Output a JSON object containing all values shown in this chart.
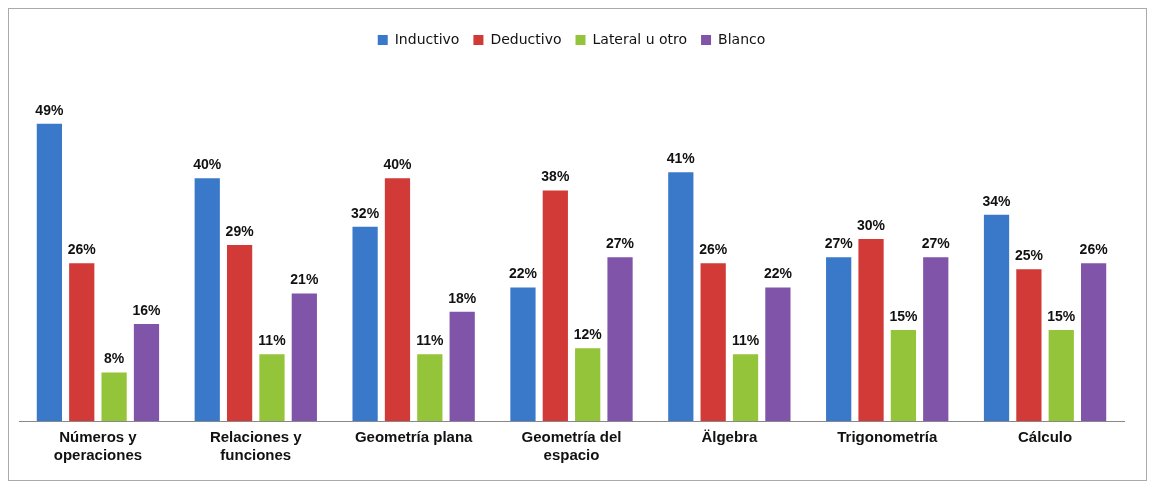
{
  "chart_data": {
    "type": "bar",
    "categories": [
      "Números y operaciones",
      "Relaciones y funciones",
      "Geometría plana",
      "Geometría del espacio",
      "Älgebra",
      "Trigonometría",
      "Cálculo"
    ],
    "series": [
      {
        "name": "Inductivo",
        "color": "#3a78c9",
        "values": [
          49,
          40,
          32,
          22,
          41,
          27,
          34
        ],
        "value_labels": [
          "49%",
          "40%",
          "32%",
          "22%",
          "41%",
          "27%",
          "34%"
        ]
      },
      {
        "name": "Deductivo",
        "color": "#d13a36",
        "values": [
          26,
          29,
          40,
          38,
          26,
          30,
          25
        ],
        "value_labels": [
          "26%",
          "29%",
          "40%",
          "38%",
          "26%",
          "30%",
          "25%"
        ]
      },
      {
        "name": "Lateral u otro",
        "color": "#94c43a",
        "values": [
          8,
          11,
          11,
          12,
          11,
          15,
          15
        ],
        "value_labels": [
          "8%",
          "11%",
          "11%",
          "12%",
          "11%",
          "15%",
          "15%"
        ]
      },
      {
        "name": "Blanco",
        "color": "#8054a8",
        "values": [
          16,
          21,
          18,
          27,
          22,
          27,
          26
        ],
        "value_labels": [
          "16%",
          "21%",
          "18%",
          "27%",
          "22%",
          "27%",
          "26%"
        ]
      }
    ],
    "legend": "top"
  }
}
